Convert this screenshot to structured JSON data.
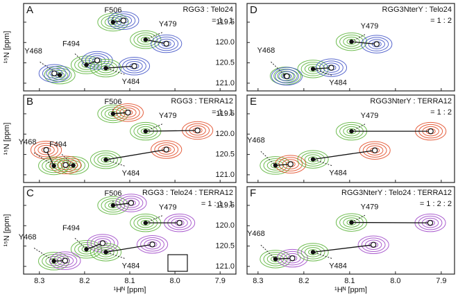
{
  "chart_data": [
    {
      "type": "scatter",
      "panel": "A",
      "title": "RGG3 : Telo24",
      "ratio": "= 1 : 1",
      "ylabel": "¹⁵N [ppm]",
      "xlim": [
        8.335,
        7.865
      ],
      "ylim": [
        121.19,
        119.04
      ],
      "xticks": [
        8.3,
        8.2,
        8.1,
        8.0,
        7.9
      ],
      "yticks": [
        119.5,
        {
          "value": 120,
          "label": "120.0"
        },
        120.5,
        {
          "value": 121,
          "label": "121.0"
        }
      ],
      "colors": {
        "free": "#54b030",
        "bound": "#3a4cc4"
      },
      "peaks": [
        {
          "label": "F506",
          "free": [
            8.137,
            119.5
          ],
          "bound": [
            8.114,
            119.46
          ]
        },
        {
          "label": "Y479",
          "free": [
            8.065,
            119.93
          ],
          "bound": [
            8.019,
            120.03
          ]
        },
        {
          "label": "F494",
          "free": [
            8.196,
            120.55
          ],
          "bound": [
            8.172,
            120.44
          ]
        },
        {
          "label": "Y468",
          "free": [
            8.255,
            120.8
          ],
          "bound": [
            8.267,
            120.76
          ]
        },
        {
          "label": "Y484",
          "free": [
            8.153,
            120.63
          ],
          "bound": [
            8.09,
            120.58
          ]
        }
      ]
    },
    {
      "type": "scatter",
      "panel": "B",
      "title": "RGG3 : TERRA12",
      "ratio": "= 1 : 1",
      "ylabel": "¹⁵N [ppm]",
      "xlim": [
        8.335,
        7.865
      ],
      "ylim": [
        121.19,
        119.04
      ],
      "xticks": [
        8.3,
        8.2,
        8.1,
        8.0,
        7.9
      ],
      "yticks": [
        119.5,
        {
          "value": 120,
          "label": "120.0"
        },
        120.5,
        {
          "value": 121,
          "label": "121.0"
        }
      ],
      "colors": {
        "free": "#54b030",
        "bound": "#e0431c"
      },
      "peaks": [
        {
          "label": "F506",
          "free": [
            8.137,
            119.5
          ],
          "bound": [
            8.104,
            119.47
          ]
        },
        {
          "label": "Y479",
          "free": [
            8.065,
            119.93
          ],
          "bound": [
            7.95,
            119.91
          ]
        },
        {
          "label": "F494",
          "free": [
            8.225,
            120.77
          ],
          "bound": [
            8.242,
            120.76
          ]
        },
        {
          "label": "Y468",
          "free": [
            8.268,
            120.78
          ],
          "bound": [
            8.285,
            120.39
          ]
        },
        {
          "label": "Y484",
          "free": [
            8.153,
            120.63
          ],
          "bound": [
            8.019,
            120.38
          ]
        }
      ]
    },
    {
      "type": "scatter",
      "panel": "C",
      "title": "RGG3 : Telo24 : TERRA12",
      "ratio": "= 1 : 1 : 1",
      "ylabel": "¹⁵N [ppm]",
      "xlabel": "¹Hᴺ [ppm]",
      "xlim": [
        8.335,
        7.865
      ],
      "ylim": [
        121.19,
        119.04
      ],
      "xticks": [
        8.3,
        8.2,
        8.1,
        {
          "value": 8,
          "label": "8.0"
        },
        7.9
      ],
      "yticks": [
        119.5,
        {
          "value": 120,
          "label": "120.0"
        },
        120.5,
        {
          "value": 121,
          "label": "121.0"
        }
      ],
      "colors": {
        "free": "#54b030",
        "bound": "#9b3fc6"
      },
      "peaks": [
        {
          "label": "F506",
          "free": [
            8.137,
            119.5
          ],
          "bound": [
            8.097,
            119.44
          ]
        },
        {
          "label": "Y479",
          "free": [
            8.065,
            119.93
          ],
          "bound": [
            7.99,
            119.93
          ]
        },
        {
          "label": "F494",
          "free": [
            8.196,
            120.58
          ],
          "bound": [
            8.16,
            120.43
          ]
        },
        {
          "label": "Y468",
          "free": [
            8.268,
            120.87
          ],
          "bound": [
            8.243,
            120.86
          ]
        },
        {
          "label": "Y484",
          "free": [
            8.153,
            120.65
          ],
          "bound": [
            8.05,
            120.46
          ]
        }
      ]
    },
    {
      "type": "scatter",
      "panel": "D",
      "title": "RGG3NterY : Telo24",
      "ratio": "= 1 : 2",
      "xlim": [
        8.324,
        7.871
      ],
      "ylim": [
        121.19,
        119.04
      ],
      "xticks": [
        8.3,
        8.2,
        8.1,
        8.0,
        7.9
      ],
      "yticks": [
        119.5,
        120,
        120.5,
        121
      ],
      "colors": {
        "free": "#54b030",
        "bound": "#3a4cc4"
      },
      "peaks": [
        {
          "label": "Y479",
          "free": [
            8.096,
            119.98
          ],
          "bound": [
            8.041,
            120.04
          ]
        },
        {
          "label": "Y468",
          "free": [
            8.24,
            120.82
          ],
          "bound": [
            8.237,
            120.83
          ]
        },
        {
          "label": "Y484",
          "free": [
            8.18,
            120.65
          ],
          "bound": [
            8.14,
            120.62
          ]
        }
      ]
    },
    {
      "type": "scatter",
      "panel": "E",
      "title": "RGG3NterY : TERRA12",
      "ratio": "= 1 : 2",
      "xlim": [
        8.324,
        7.871
      ],
      "ylim": [
        121.19,
        119.04
      ],
      "xticks": [
        8.3,
        8.2,
        8.1,
        8.0,
        7.9
      ],
      "yticks": [
        119.5,
        120,
        120.5,
        121
      ],
      "colors": {
        "free": "#54b030",
        "bound": "#e0431c"
      },
      "peaks": [
        {
          "label": "Y479",
          "free": [
            8.096,
            119.93
          ],
          "bound": [
            7.923,
            119.93
          ]
        },
        {
          "label": "Y468",
          "free": [
            8.262,
            120.77
          ],
          "bound": [
            8.229,
            120.74
          ]
        },
        {
          "label": "Y484",
          "free": [
            8.18,
            120.62
          ],
          "bound": [
            8.045,
            120.4
          ]
        }
      ]
    },
    {
      "type": "scatter",
      "panel": "F",
      "title": "RGG3NterY : Telo24 : TERRA12",
      "ratio": "= 1 : 2 : 2",
      "xlabel": "¹Hᴺ [ppm]",
      "xlim": [
        8.324,
        7.871
      ],
      "ylim": [
        121.19,
        119.04
      ],
      "xticks": [
        8.3,
        8.2,
        8.1,
        {
          "value": 8,
          "label": "8.0"
        },
        7.9
      ],
      "yticks": [
        119.5,
        120,
        120.5,
        121
      ],
      "colors": {
        "free": "#54b030",
        "bound": "#9b3fc6"
      },
      "peaks": [
        {
          "label": "Y479",
          "free": [
            8.096,
            119.92
          ],
          "bound": [
            7.924,
            119.93
          ]
        },
        {
          "label": "Y468",
          "free": [
            8.262,
            120.82
          ],
          "bound": [
            8.225,
            120.8
          ]
        },
        {
          "label": "Y484",
          "free": [
            8.18,
            120.65
          ],
          "bound": [
            8.048,
            120.47
          ]
        }
      ]
    }
  ]
}
